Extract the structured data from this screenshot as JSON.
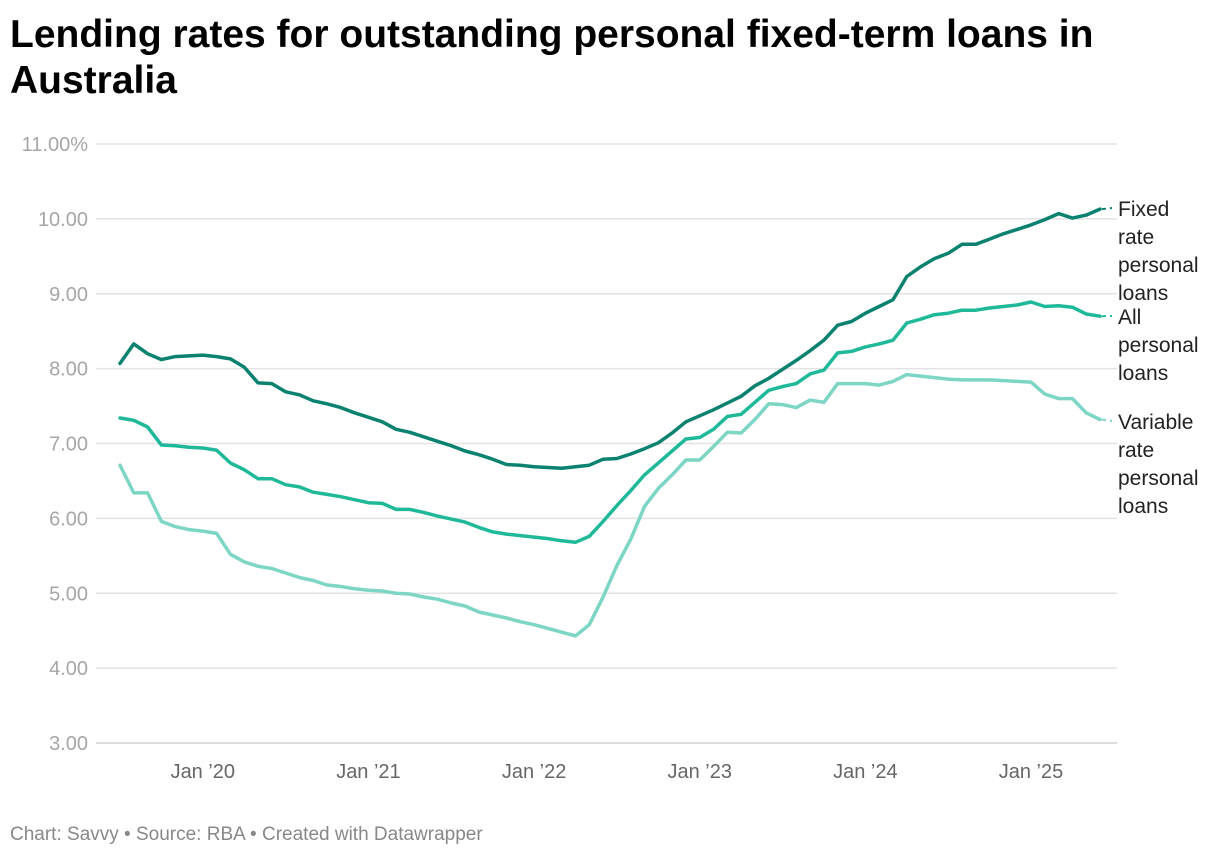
{
  "title": "Lending rates for outstanding personal fixed-term loans in Australia",
  "footer": {
    "chart": "Chart: Savvy",
    "source": "Source: RBA",
    "created": "Created with Datawrapper",
    "separator": " • "
  },
  "chart_data": {
    "type": "line",
    "title": "Lending rates for outstanding personal fixed-term loans in Australia",
    "x_start": "2019-07",
    "x_frequency": "monthly",
    "x_tick_labels": [
      "Jan ’20",
      "Jan ’21",
      "Jan ’22",
      "Jan ’23",
      "Jan ’24",
      "Jan ’25"
    ],
    "y_tick_labels": [
      "11.00%",
      "10.00",
      "9.00",
      "8.00",
      "7.00",
      "6.00",
      "5.00",
      "4.00",
      "3.00"
    ],
    "ylim": [
      3,
      11
    ],
    "grid": "horizontal",
    "legend": "direct labels at right",
    "series": [
      {
        "name": "Fixed rate personal loans",
        "color": "#0b8270",
        "values": [
          8.07,
          8.33,
          8.2,
          8.12,
          8.16,
          8.17,
          8.18,
          8.16,
          8.13,
          8.02,
          7.81,
          7.8,
          7.69,
          7.65,
          7.57,
          7.53,
          7.48,
          7.41,
          7.35,
          7.29,
          7.19,
          7.15,
          7.09,
          7.03,
          6.97,
          6.9,
          6.85,
          6.79,
          6.72,
          6.71,
          6.69,
          6.68,
          6.67,
          6.69,
          6.71,
          6.79,
          6.8,
          6.86,
          6.93,
          7.01,
          7.14,
          7.29,
          7.37,
          7.45,
          7.54,
          7.63,
          7.77,
          7.87,
          7.99,
          8.11,
          8.24,
          8.38,
          8.58,
          8.63,
          8.74,
          8.83,
          8.92,
          9.23,
          9.36,
          9.47,
          9.54,
          9.66,
          9.66,
          9.73,
          9.8,
          9.86,
          9.92,
          9.99,
          10.07,
          10.01,
          10.05,
          10.13
        ]
      },
      {
        "name": "All personal loans",
        "color": "#1fb99a",
        "values": [
          7.34,
          7.31,
          7.22,
          6.98,
          6.97,
          6.95,
          6.94,
          6.91,
          6.74,
          6.65,
          6.53,
          6.53,
          6.45,
          6.42,
          6.35,
          6.32,
          6.29,
          6.25,
          6.21,
          6.2,
          6.12,
          6.12,
          6.08,
          6.03,
          5.99,
          5.95,
          5.88,
          5.82,
          5.79,
          5.77,
          5.75,
          5.73,
          5.7,
          5.68,
          5.76,
          5.96,
          6.17,
          6.37,
          6.58,
          6.74,
          6.9,
          7.06,
          7.08,
          7.19,
          7.36,
          7.39,
          7.55,
          7.71,
          7.76,
          7.8,
          7.93,
          7.98,
          8.21,
          8.23,
          8.29,
          8.33,
          8.38,
          8.61,
          8.66,
          8.72,
          8.74,
          8.78,
          8.78,
          8.81,
          8.83,
          8.85,
          8.89,
          8.83,
          8.84,
          8.82,
          8.73,
          8.7
        ]
      },
      {
        "name": "Variable rate personal loans",
        "color": "#7dd6c4",
        "values": [
          6.71,
          6.34,
          6.34,
          5.96,
          5.89,
          5.85,
          5.83,
          5.8,
          5.52,
          5.42,
          5.36,
          5.33,
          5.27,
          5.21,
          5.17,
          5.11,
          5.09,
          5.06,
          5.04,
          5.03,
          5.0,
          4.99,
          4.95,
          4.92,
          4.87,
          4.83,
          4.75,
          4.71,
          4.67,
          4.62,
          4.58,
          4.53,
          4.48,
          4.43,
          4.58,
          4.95,
          5.37,
          5.72,
          6.16,
          6.4,
          6.58,
          6.78,
          6.78,
          6.96,
          7.15,
          7.14,
          7.32,
          7.53,
          7.52,
          7.48,
          7.58,
          7.55,
          7.8,
          7.8,
          7.8,
          7.78,
          7.83,
          7.92,
          7.9,
          7.88,
          7.86,
          7.85,
          7.85,
          7.85,
          7.84,
          7.83,
          7.82,
          7.66,
          7.6,
          7.6,
          7.41,
          7.32
        ]
      }
    ],
    "series_label_lines": [
      [
        "Fixed",
        "rate",
        "personal",
        "loans"
      ],
      [
        "All",
        "personal",
        "loans"
      ],
      [
        "Variable",
        "rate",
        "personal",
        "loans"
      ]
    ]
  }
}
